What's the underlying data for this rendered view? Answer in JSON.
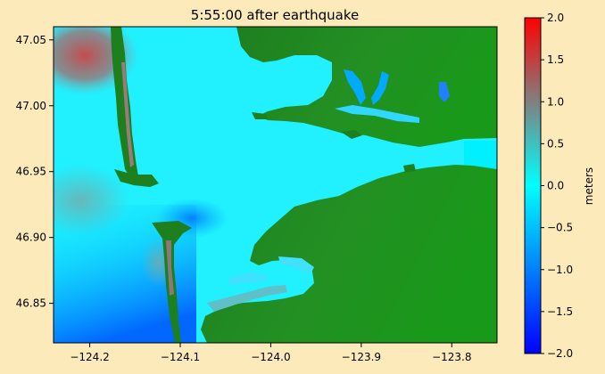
{
  "chart_data": {
    "type": "heatmap",
    "title": "5:55:00 after earthquake",
    "xlabel": "",
    "ylabel": "",
    "xlim": [
      -124.24,
      -123.75
    ],
    "ylim": [
      46.82,
      47.06
    ],
    "xticks": [
      -124.2,
      -124.1,
      -124.0,
      -123.9,
      -123.8
    ],
    "xtick_labels": [
      "−124.2",
      "−124.1",
      "−124.0",
      "−123.9",
      "−123.8"
    ],
    "yticks": [
      46.85,
      46.9,
      46.95,
      47.0,
      47.05
    ],
    "ytick_labels": [
      "46.85",
      "46.90",
      "46.95",
      "47.00",
      "47.05"
    ],
    "grid": false,
    "colorbar": {
      "label": "meters",
      "range": [
        -2.0,
        2.0
      ],
      "ticks": [
        -2.0,
        -1.5,
        -1.0,
        -0.5,
        0.0,
        0.5,
        1.0,
        1.5,
        2.0
      ],
      "tick_labels": [
        "−2.0",
        "−1.5",
        "−1.0",
        "−0.5",
        "0.0",
        "0.5",
        "1.0",
        "1.5",
        "2.0"
      ],
      "colors": [
        "#0000ff",
        "#0080ff",
        "#00ffff",
        "#808080",
        "#ff0000"
      ]
    },
    "colors": {
      "water": "#00ffff",
      "land": "#1f8c1f",
      "background": "#fdeabb"
    }
  }
}
